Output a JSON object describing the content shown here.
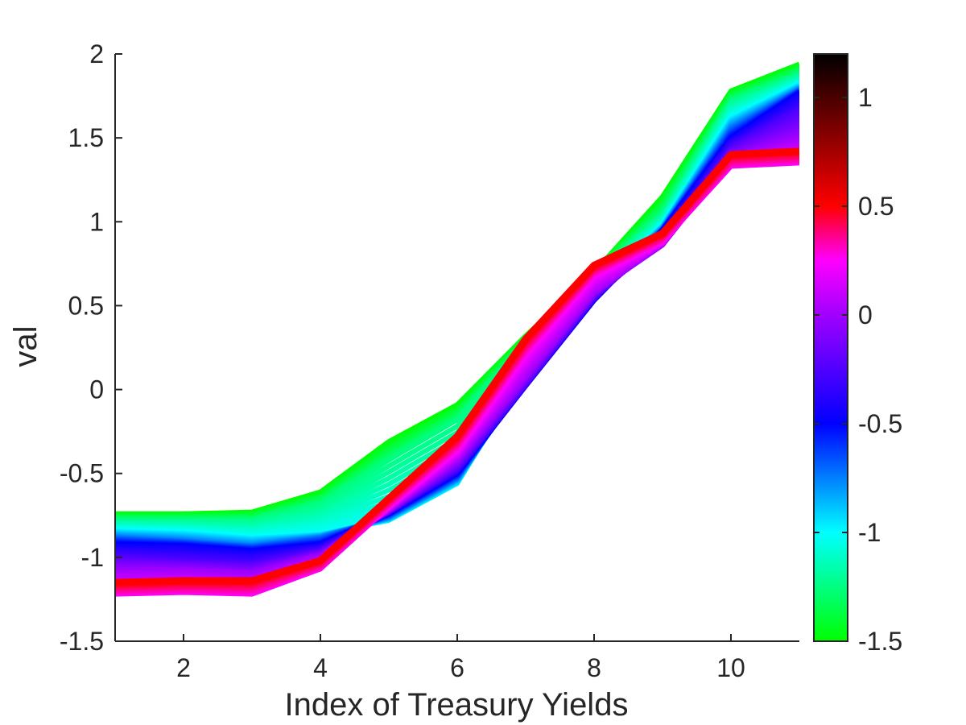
{
  "chart_data": {
    "type": "line",
    "xlabel": "Index of Treasury Yields",
    "ylabel": "val",
    "xlim": [
      1,
      11
    ],
    "ylim": [
      -1.5,
      2
    ],
    "xticks": [
      "2",
      "4",
      "6",
      "8",
      "10"
    ],
    "yticks": [
      "-1.5",
      "-1",
      "-0.5",
      "0",
      "0.5",
      "1",
      "1.5",
      "2"
    ],
    "x": [
      1,
      2,
      3,
      4,
      5,
      6,
      7,
      8,
      9,
      10,
      11
    ],
    "grid": false,
    "colormap": "hsv-segment (green → cyan → blue → magenta → red → black)",
    "colorbar": {
      "range": [
        -1.5,
        1.2
      ],
      "ticks": [
        "-1.5",
        "-1",
        "-0.5",
        "0",
        "0.5",
        "1"
      ],
      "stops": [
        {
          "value": -1.5,
          "color": "#00ff00"
        },
        {
          "value": -1.0,
          "color": "#00ffff"
        },
        {
          "value": -0.5,
          "color": "#0000ff"
        },
        {
          "value": 0.0,
          "color": "#a000ff"
        },
        {
          "value": 0.25,
          "color": "#ff00ff"
        },
        {
          "value": 0.5,
          "color": "#ff0000"
        },
        {
          "value": 1.2,
          "color": "#000000"
        }
      ]
    },
    "series": [
      {
        "level": -1.5,
        "values": [
          -0.74,
          -0.74,
          -0.73,
          -0.61,
          -0.31,
          -0.09,
          0.32,
          0.7,
          1.15,
          1.78,
          1.94
        ]
      },
      {
        "level": -1.25,
        "values": [
          -0.78,
          -0.78,
          -0.78,
          -0.68,
          -0.42,
          -0.18,
          0.28,
          0.68,
          1.05,
          1.72,
          1.88
        ]
      },
      {
        "level": -1.0,
        "values": [
          -0.84,
          -0.85,
          -0.88,
          -0.86,
          -0.78,
          -0.56,
          0.1,
          0.6,
          0.98,
          1.62,
          1.82
        ]
      },
      {
        "level": -0.75,
        "values": [
          -0.88,
          -0.9,
          -0.93,
          -0.88,
          -0.76,
          -0.53,
          0.05,
          0.56,
          0.96,
          1.56,
          1.79
        ]
      },
      {
        "level": -0.5,
        "values": [
          -0.92,
          -0.93,
          -0.96,
          -0.92,
          -0.74,
          -0.5,
          0.02,
          0.53,
          0.95,
          1.5,
          1.77
        ]
      },
      {
        "level": -0.25,
        "values": [
          -1.0,
          -1.02,
          -1.04,
          -0.96,
          -0.73,
          -0.47,
          0.03,
          0.55,
          0.9,
          1.44,
          1.66
        ]
      },
      {
        "level": 0.0,
        "values": [
          -1.08,
          -1.08,
          -1.1,
          -0.99,
          -0.72,
          -0.42,
          0.08,
          0.58,
          0.86,
          1.38,
          1.5
        ]
      },
      {
        "level": 0.25,
        "values": [
          -1.22,
          -1.21,
          -1.22,
          -1.07,
          -0.7,
          -0.36,
          0.21,
          0.68,
          0.88,
          1.33,
          1.35
        ]
      },
      {
        "level": 0.5,
        "values": [
          -1.15,
          -1.14,
          -1.14,
          -1.02,
          -0.65,
          -0.28,
          0.3,
          0.74,
          0.93,
          1.4,
          1.42
        ]
      }
    ]
  }
}
